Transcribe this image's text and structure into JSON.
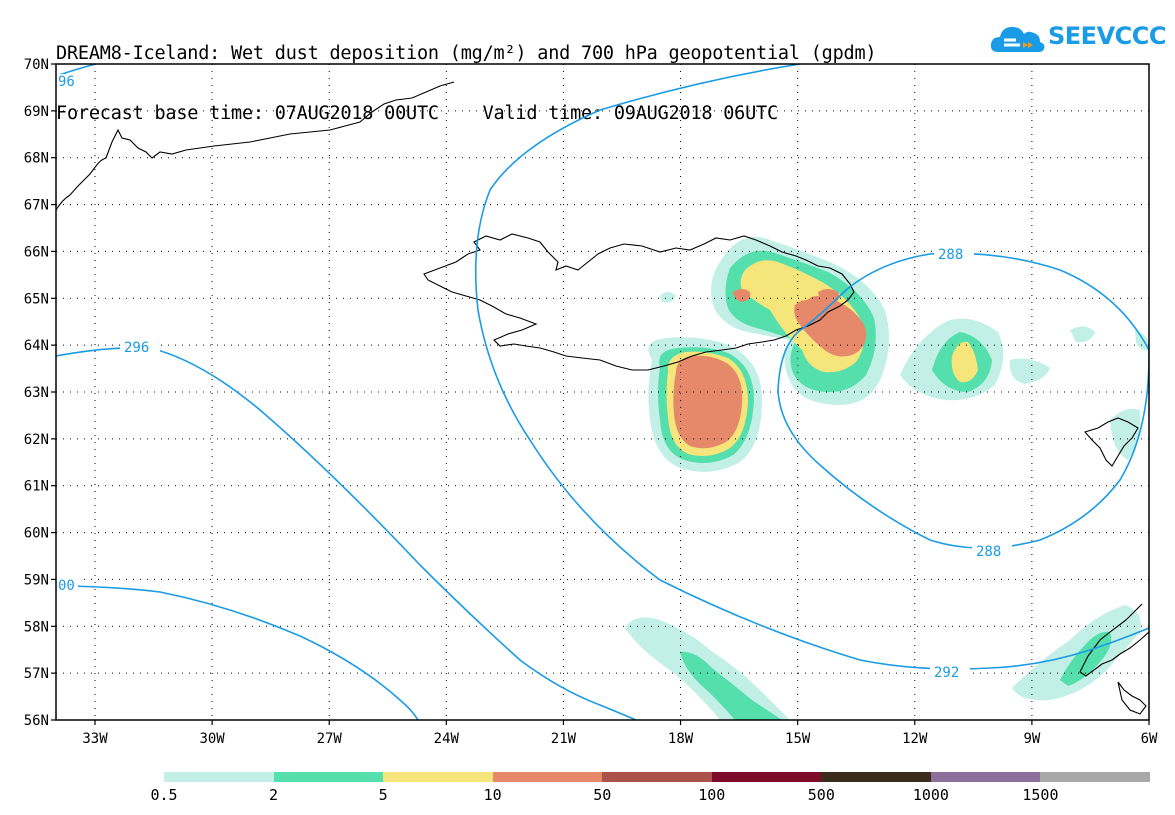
{
  "header": {
    "line1": "DREAM8-Iceland: Wet dust deposition (mg/m²) and 700 hPa geopotential (gpdm)",
    "line2": "Forecast base time: 07AUG2018 00UTC    Valid time: 09AUG2018 06UTC"
  },
  "logo": {
    "text": "SEEVCCC",
    "color": "#1a9be6"
  },
  "map": {
    "lat_labels": [
      "70N",
      "69N",
      "68N",
      "67N",
      "66N",
      "65N",
      "64N",
      "63N",
      "62N",
      "61N",
      "60N",
      "59N",
      "58N",
      "57N",
      "56N"
    ],
    "lon_labels": [
      "33W",
      "30W",
      "27W",
      "24W",
      "21W",
      "18W",
      "15W",
      "12W",
      "9W",
      "6W"
    ],
    "contour_labels": {
      "c296_top": "96",
      "c296": "296",
      "c300": "00",
      "c288_a": "288",
      "c288_b": "288",
      "c292": "292"
    },
    "contour_color": "#1a9be6"
  },
  "legend": {
    "labels": [
      "0.5",
      "2",
      "5",
      "10",
      "50",
      "100",
      "500",
      "1000",
      "1500"
    ],
    "colors": [
      "#c2f0e6",
      "#55dfad",
      "#f5e57a",
      "#e5896a",
      "#a9534b",
      "#7f0b2b",
      "#3b2c1b",
      "#8e6f9c",
      "#a9a9a9"
    ]
  }
}
